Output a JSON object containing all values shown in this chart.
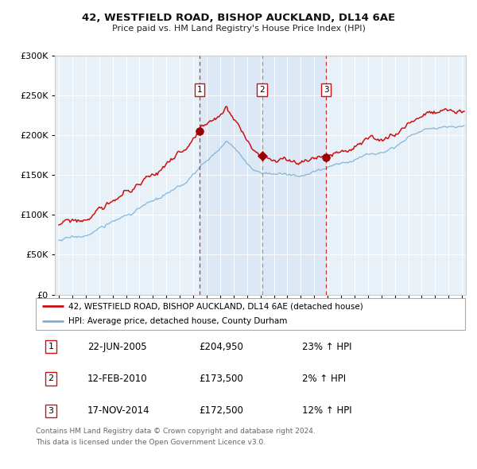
{
  "title": "42, WESTFIELD ROAD, BISHOP AUCKLAND, DL14 6AE",
  "subtitle": "Price paid vs. HM Land Registry's House Price Index (HPI)",
  "legend_line1": "42, WESTFIELD ROAD, BISHOP AUCKLAND, DL14 6AE (detached house)",
  "legend_line2": "HPI: Average price, detached house, County Durham",
  "sale1_date": "22-JUN-2005",
  "sale1_price": "£204,950",
  "sale1_hpi": "23% ↑ HPI",
  "sale1_year": 2005.47,
  "sale1_value": 204950,
  "sale2_date": "12-FEB-2010",
  "sale2_price": "£173,500",
  "sale2_hpi": "2% ↑ HPI",
  "sale2_year": 2010.12,
  "sale2_value": 173500,
  "sale3_date": "17-NOV-2014",
  "sale3_price": "£172,500",
  "sale3_hpi": "12% ↑ HPI",
  "sale3_year": 2014.88,
  "sale3_value": 172500,
  "footer_line1": "Contains HM Land Registry data © Crown copyright and database right 2024.",
  "footer_line2": "This data is licensed under the Open Government Licence v3.0.",
  "hpi_color": "#7ab0d8",
  "property_color": "#cc1111",
  "marker_color": "#990000",
  "vline1_color": "#cc1111",
  "vline2_color": "#888888",
  "vline3_color": "#cc1111",
  "shade_color": "#dce8f5",
  "plot_bg": "#e8f0f8",
  "background_color": "#ffffff",
  "ylim": [
    0,
    300000
  ],
  "xlim_start": 1994.7,
  "xlim_end": 2025.3
}
